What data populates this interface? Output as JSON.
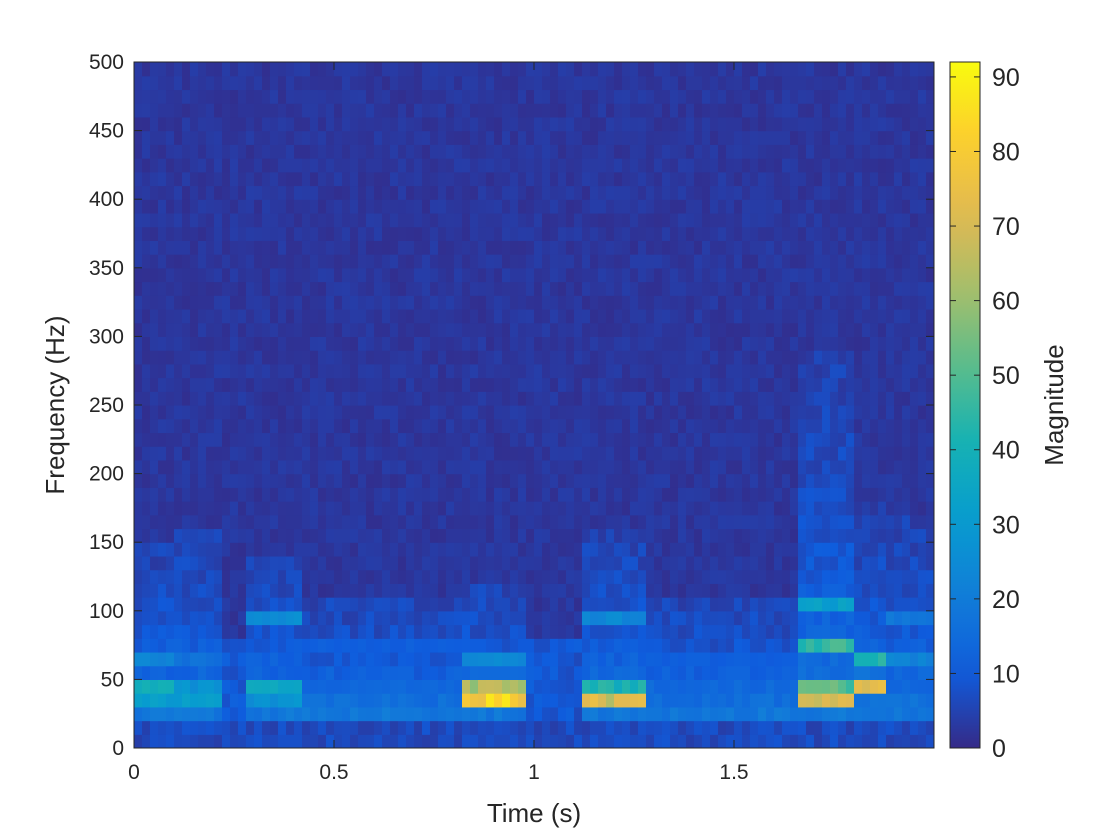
{
  "chart_data": {
    "type": "heatmap",
    "title": "",
    "xlabel": "Time (s)",
    "ylabel": "Frequency (Hz)",
    "xlim": [
      0,
      2
    ],
    "ylim": [
      0,
      500
    ],
    "x_ticks": [
      0,
      0.5,
      1,
      1.5
    ],
    "x_tick_labels": [
      "0",
      "0.5",
      "1",
      "1.5"
    ],
    "y_ticks": [
      0,
      50,
      100,
      150,
      200,
      250,
      300,
      350,
      400,
      450,
      500
    ],
    "y_tick_labels": [
      "0",
      "50",
      "100",
      "150",
      "200",
      "250",
      "300",
      "350",
      "400",
      "450",
      "500"
    ],
    "grid": false,
    "colormap": "parula",
    "colorbar": {
      "label": "Magnitude",
      "range": [
        0,
        92
      ],
      "ticks": [
        0,
        10,
        20,
        30,
        40,
        50,
        60,
        70,
        80,
        90
      ],
      "tick_labels": [
        "0",
        "10",
        "20",
        "30",
        "40",
        "50",
        "60",
        "70",
        "80",
        "90"
      ],
      "placement": "right"
    },
    "frequency_bin_hz": 10,
    "segments": [
      {
        "t_start": 0.0,
        "t_end": 0.1,
        "peaks": [
          {
            "f": 40,
            "v": 45
          },
          {
            "f": 30,
            "v": 35
          },
          {
            "f": 60,
            "v": 25
          }
        ],
        "tail_hz": 150
      },
      {
        "t_start": 0.1,
        "t_end": 0.22,
        "peaks": [
          {
            "f": 30,
            "v": 35
          },
          {
            "f": 40,
            "v": 30
          },
          {
            "f": 60,
            "v": 18
          }
        ],
        "tail_hz": 160
      },
      {
        "t_start": 0.28,
        "t_end": 0.42,
        "peaks": [
          {
            "f": 40,
            "v": 38
          },
          {
            "f": 30,
            "v": 30
          },
          {
            "f": 90,
            "v": 28
          }
        ],
        "tail_hz": 140
      },
      {
        "t_start": 0.42,
        "t_end": 0.82,
        "peaks": [
          {
            "f": 40,
            "v": 15
          },
          {
            "f": 70,
            "v": 12
          }
        ],
        "tail_hz": 110
      },
      {
        "t_start": 0.82,
        "t_end": 0.98,
        "peaks": [
          {
            "f": 30,
            "v": 88
          },
          {
            "f": 40,
            "v": 68
          },
          {
            "f": 60,
            "v": 28
          }
        ],
        "tail_hz": 120
      },
      {
        "t_start": 1.12,
        "t_end": 1.28,
        "peaks": [
          {
            "f": 30,
            "v": 76
          },
          {
            "f": 40,
            "v": 45
          },
          {
            "f": 90,
            "v": 26
          }
        ],
        "tail_hz": 160
      },
      {
        "t_start": 1.28,
        "t_end": 1.66,
        "peaks": [
          {
            "f": 40,
            "v": 15
          },
          {
            "f": 60,
            "v": 12
          }
        ],
        "tail_hz": 110
      },
      {
        "t_start": 1.66,
        "t_end": 1.8,
        "peaks": [
          {
            "f": 30,
            "v": 78
          },
          {
            "f": 40,
            "v": 55
          },
          {
            "f": 70,
            "v": 50
          },
          {
            "f": 100,
            "v": 35
          }
        ],
        "tail_hz": 290
      },
      {
        "t_start": 1.8,
        "t_end": 1.88,
        "peaks": [
          {
            "f": 40,
            "v": 82
          },
          {
            "f": 60,
            "v": 45
          }
        ],
        "tail_hz": 180
      },
      {
        "t_start": 1.88,
        "t_end": 2.0,
        "peaks": [
          {
            "f": 60,
            "v": 25
          },
          {
            "f": 90,
            "v": 20
          }
        ],
        "tail_hz": 170
      }
    ]
  }
}
